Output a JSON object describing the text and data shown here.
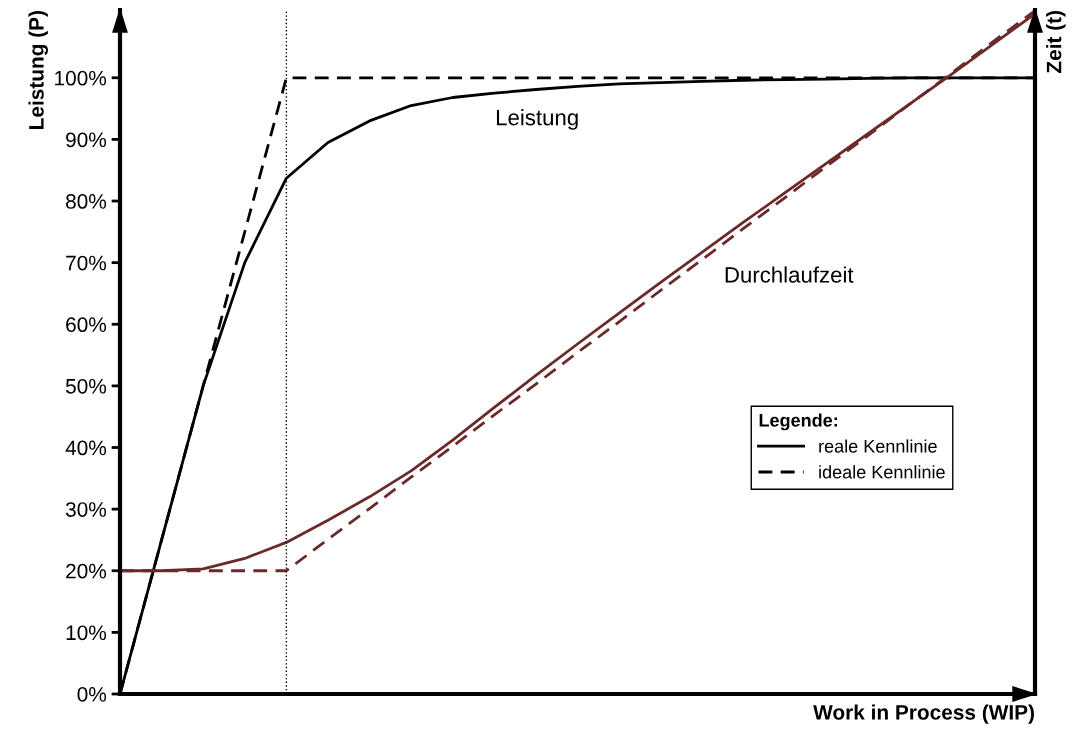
{
  "chart_data": {
    "type": "line",
    "xlabel": "Work in Process (WIP)",
    "ylabel": "Leistung (P)",
    "y2label": "Zeit (t)",
    "categories": [
      null,
      null,
      null,
      null,
      null,
      null,
      null,
      null,
      null,
      null,
      null,
      null,
      null,
      null,
      null,
      null,
      null,
      null,
      null,
      null,
      null,
      null,
      null
    ],
    "ylim": [
      0,
      111
    ],
    "yticks": [
      {
        "value": 0,
        "label": "0%"
      },
      {
        "value": 10,
        "label": "10%"
      },
      {
        "value": 20,
        "label": "20%"
      },
      {
        "value": 30,
        "label": "30%"
      },
      {
        "value": 40,
        "label": "40%"
      },
      {
        "value": 50,
        "label": "50%"
      },
      {
        "value": 60,
        "label": "60%"
      },
      {
        "value": 70,
        "label": "70%"
      },
      {
        "value": 80,
        "label": "80%"
      },
      {
        "value": 90,
        "label": "90%"
      },
      {
        "value": 100,
        "label": "100%"
      }
    ],
    "series": [
      {
        "name": "reale Kennlinie",
        "color": "#000000",
        "line_style": "solid",
        "values": [
          0,
          25,
          50,
          70,
          83.7,
          89.5,
          93,
          95.5,
          96.8,
          97.5,
          98.1,
          98.6,
          99,
          99.2,
          99.4,
          99.6,
          99.7,
          99.8,
          99.9,
          100,
          100,
          100,
          100
        ]
      },
      {
        "name": "ideale Kennlinie",
        "color": "#000000",
        "line_style": "dashed",
        "values": [
          0,
          25,
          50,
          75,
          100,
          100,
          100,
          100,
          100,
          100,
          100,
          100,
          100,
          100,
          100,
          100,
          100,
          100,
          100,
          100,
          100,
          100,
          100
        ]
      },
      {
        "color": "#6b2a2a",
        "line_style": "solid",
        "values": [
          20,
          20,
          20.3,
          22,
          24.6,
          28.2,
          32,
          36.2,
          41.2,
          46.5,
          51.7,
          56.8,
          61.8,
          66.8,
          71.7,
          76.6,
          81.4,
          86.2,
          91,
          95.8,
          100.6,
          105.5,
          110.4
        ]
      },
      {
        "color": "#6b2a2a",
        "line_style": "dashed",
        "values": [
          20,
          20,
          20,
          20,
          20,
          25.1,
          30.1,
          35.2,
          40.2,
          45.3,
          50.3,
          55.4,
          60.4,
          65.5,
          70.5,
          75.6,
          80.6,
          85.7,
          90.7,
          95.8,
          100.8,
          105.9,
          110.9
        ]
      }
    ],
    "annotations": [
      "Leistung",
      "Durchlaufzeit"
    ],
    "legend": "right",
    "legend_title": "Legende:",
    "grid": false
  }
}
